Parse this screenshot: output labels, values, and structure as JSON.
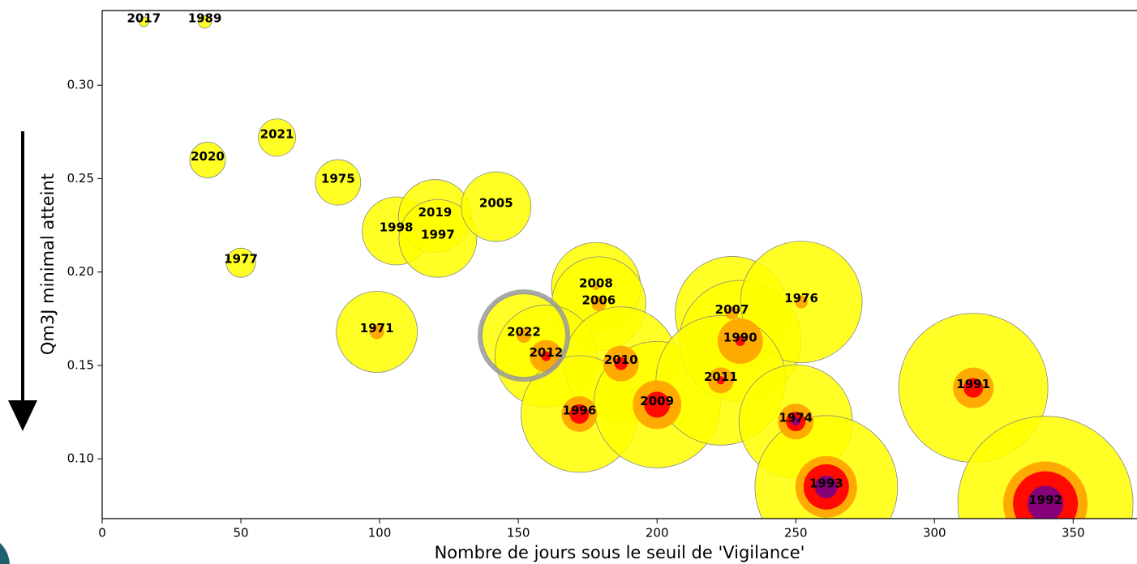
{
  "chart_data": {
    "type": "bubble",
    "xlabel": "Nombre de jours sous le seuil de 'Vigilance'",
    "ylabel": "Qm3J minimal atteint",
    "xlim": [
      0,
      373
    ],
    "ylim": [
      0.068,
      0.34
    ],
    "xticks": [
      0,
      50,
      100,
      150,
      200,
      250,
      300,
      350
    ],
    "yticks": [
      {
        "value": 0.1,
        "label": "0.10"
      },
      0.15,
      {
        "value": 0.2,
        "label": "0.20"
      },
      0.25,
      {
        "value": 0.3,
        "label": "0.30"
      }
    ],
    "colors": [
      "#ffff00",
      "#ffa500",
      "#ff0000",
      "#800080"
    ],
    "highlight": "2022",
    "points": [
      {
        "label": "2017",
        "x": 15,
        "y": 0.334,
        "sizes": [
          6,
          null,
          null,
          null
        ]
      },
      {
        "label": "1989",
        "x": 37,
        "y": 0.334,
        "sizes": [
          8,
          null,
          null,
          null
        ]
      },
      {
        "label": "2021",
        "x": 63,
        "y": 0.272,
        "sizes": [
          23,
          null,
          null,
          null
        ]
      },
      {
        "label": "2020",
        "x": 38,
        "y": 0.26,
        "sizes": [
          22,
          null,
          null,
          null
        ]
      },
      {
        "label": "1975",
        "x": 85,
        "y": 0.248,
        "sizes": [
          28,
          null,
          null,
          null
        ]
      },
      {
        "label": "1977",
        "x": 50,
        "y": 0.205,
        "sizes": [
          18,
          null,
          null,
          null
        ]
      },
      {
        "label": "1998",
        "x": 106,
        "y": 0.222,
        "sizes": [
          42,
          null,
          null,
          null
        ]
      },
      {
        "label": "2019",
        "x": 120,
        "y": 0.23,
        "sizes": [
          45,
          null,
          null,
          null
        ]
      },
      {
        "label": "1997",
        "x": 121,
        "y": 0.218,
        "sizes": [
          48,
          null,
          null,
          null
        ]
      },
      {
        "label": "2005",
        "x": 142,
        "y": 0.235,
        "sizes": [
          43,
          null,
          null,
          null
        ]
      },
      {
        "label": "1971",
        "x": 99,
        "y": 0.168,
        "sizes": [
          50,
          9,
          null,
          null
        ]
      },
      {
        "label": "2008",
        "x": 178,
        "y": 0.192,
        "sizes": [
          55,
          4,
          null,
          null
        ]
      },
      {
        "label": "2006",
        "x": 179,
        "y": 0.183,
        "sizes": [
          58,
          9,
          null,
          null
        ]
      },
      {
        "label": "2022",
        "x": 152,
        "y": 0.166,
        "sizes": [
          52,
          9,
          null,
          null
        ]
      },
      {
        "label": "2012",
        "x": 160,
        "y": 0.155,
        "sizes": [
          63,
          20,
          6,
          null
        ]
      },
      {
        "label": "2010",
        "x": 187,
        "y": 0.151,
        "sizes": [
          70,
          22,
          8,
          null
        ]
      },
      {
        "label": "1996",
        "x": 172,
        "y": 0.124,
        "sizes": [
          72,
          22,
          12,
          null
        ]
      },
      {
        "label": "2009",
        "x": 200,
        "y": 0.129,
        "sizes": [
          78,
          30,
          16,
          null
        ]
      },
      {
        "label": "2007",
        "x": 227,
        "y": 0.178,
        "sizes": [
          70,
          8,
          null,
          null
        ]
      },
      {
        "label": "1990",
        "x": 230,
        "y": 0.163,
        "sizes": [
          75,
          28,
          6,
          null
        ]
      },
      {
        "label": "1976",
        "x": 252,
        "y": 0.184,
        "sizes": [
          75,
          8,
          null,
          null
        ]
      },
      {
        "label": "2011",
        "x": 223,
        "y": 0.142,
        "sizes": [
          80,
          16,
          5,
          null
        ]
      },
      {
        "label": "1974",
        "x": 250,
        "y": 0.12,
        "sizes": [
          70,
          22,
          12,
          5
        ]
      },
      {
        "label": "1993",
        "x": 261,
        "y": 0.085,
        "sizes": [
          88,
          38,
          28,
          14
        ]
      },
      {
        "label": "1991",
        "x": 314,
        "y": 0.138,
        "sizes": [
          92,
          25,
          12,
          null
        ]
      },
      {
        "label": "1992",
        "x": 340,
        "y": 0.076,
        "sizes": [
          108,
          52,
          40,
          22
        ]
      }
    ]
  }
}
